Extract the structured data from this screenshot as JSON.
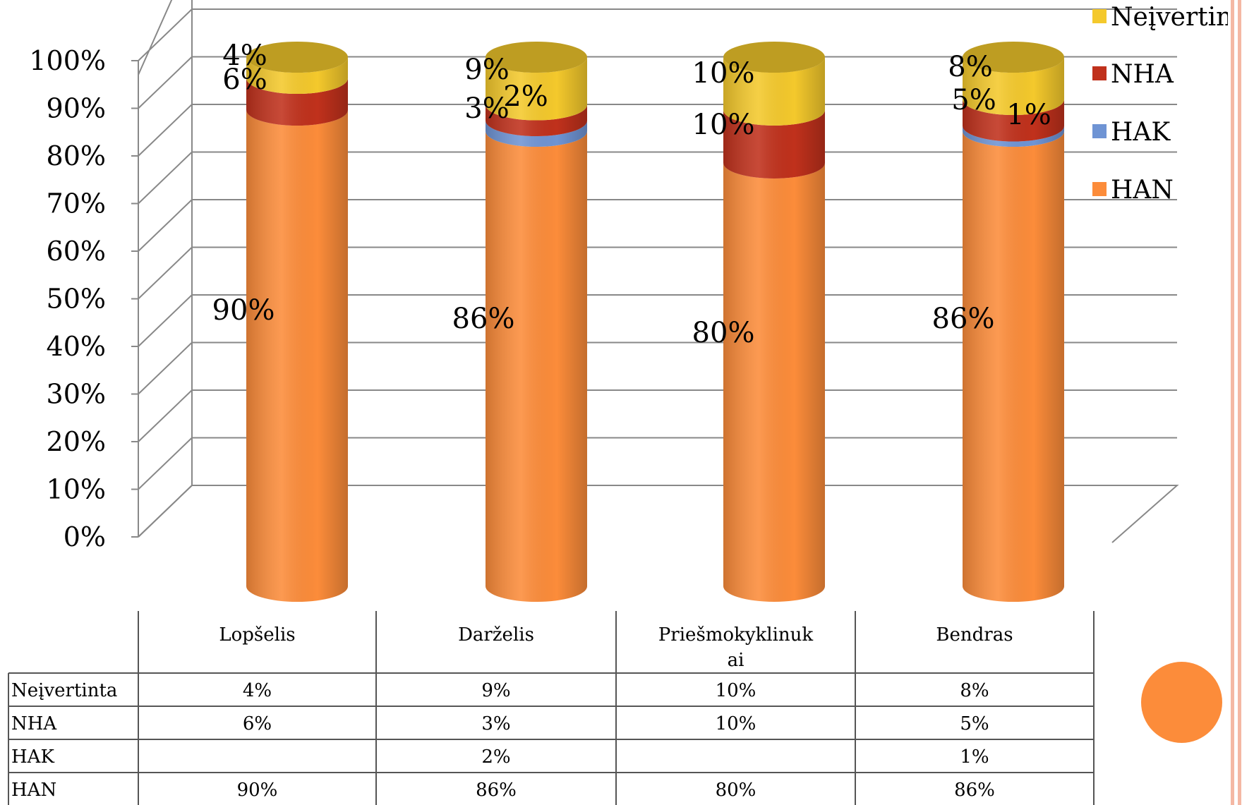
{
  "chart_data": {
    "type": "bar",
    "stacked": true,
    "style": "3d-cylinder",
    "categories": [
      "Lopšelis",
      "Darželis",
      "Priešmokyklinuk ai",
      "Bendras"
    ],
    "category_lines": [
      [
        "Lopšelis"
      ],
      [
        "Darželis"
      ],
      [
        "Priešmokyklinuk",
        "ai"
      ],
      [
        "Bendras"
      ]
    ],
    "series": [
      {
        "name": "HAN",
        "values": [
          90,
          86,
          80,
          86
        ],
        "labels": [
          "90%",
          "86%",
          "80%",
          "86%"
        ],
        "color": "#fc8c3a"
      },
      {
        "name": "HAK",
        "values": [
          null,
          2,
          null,
          1
        ],
        "labels": [
          "",
          "2%",
          "",
          "1%"
        ],
        "color": "#6f94d4"
      },
      {
        "name": "NHA",
        "values": [
          6,
          3,
          10,
          5
        ],
        "labels": [
          "6%",
          "3%",
          "10%",
          "5%"
        ],
        "color": "#c0311c"
      },
      {
        "name": "Neįvertinta",
        "values": [
          4,
          9,
          10,
          8
        ],
        "labels": [
          "4%",
          "9%",
          "10%",
          "8%"
        ],
        "color": "#f4c92c"
      }
    ],
    "yticks": [
      "0%",
      "10%",
      "20%",
      "30%",
      "40%",
      "50%",
      "60%",
      "70%",
      "80%",
      "90%",
      "100%"
    ],
    "ylim": [
      0,
      100
    ],
    "grid": true,
    "legend": {
      "position": "right",
      "order": [
        "Neįvertinta",
        "NHA",
        "HAK",
        "HAN"
      ]
    },
    "data_table": {
      "rows": [
        {
          "name": "Neįvertinta",
          "cells": [
            "4%",
            "9%",
            "10%",
            "8%"
          ]
        },
        {
          "name": "NHA",
          "cells": [
            "6%",
            "3%",
            "10%",
            "5%"
          ]
        },
        {
          "name": "HAK",
          "cells": [
            "",
            "2%",
            "",
            "1%"
          ]
        },
        {
          "name": "HAN",
          "cells": [
            "90%",
            "86%",
            "80%",
            "86%"
          ]
        }
      ]
    }
  }
}
